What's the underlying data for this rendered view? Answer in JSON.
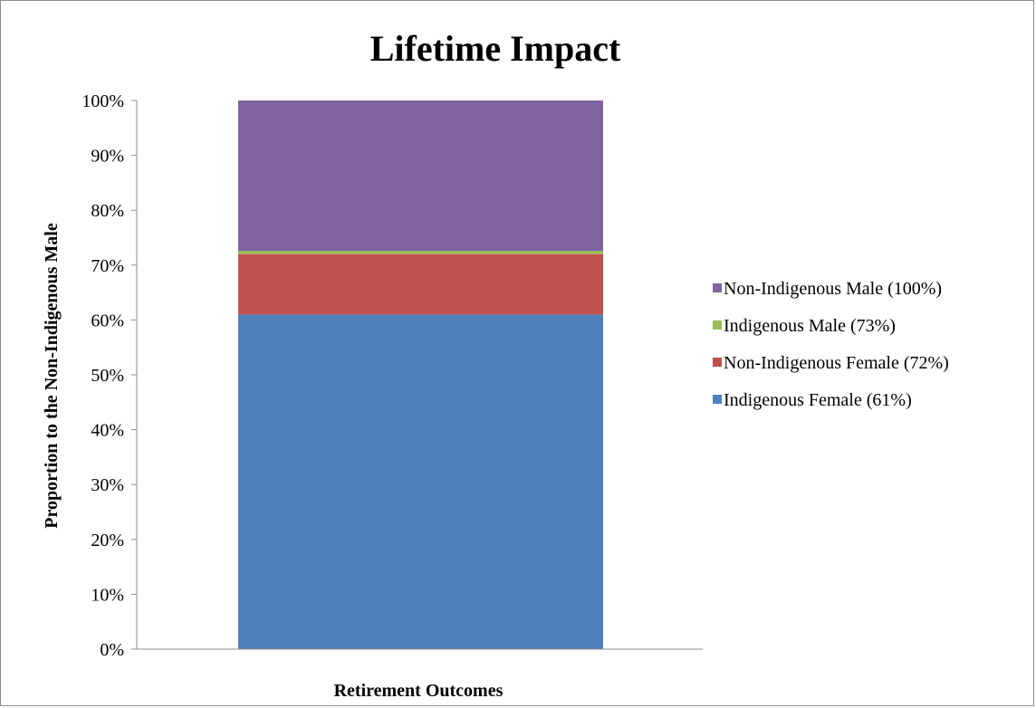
{
  "chart_data": {
    "type": "bar",
    "stacked": true,
    "title": "Lifetime Impact",
    "xlabel": "Retirement Outcomes",
    "ylabel": "Proportion to the Non-Indigenous Male",
    "ylim": [
      0,
      100
    ],
    "yticks": [
      "0%",
      "10%",
      "20%",
      "30%",
      "40%",
      "50%",
      "60%",
      "70%",
      "80%",
      "90%",
      "100%"
    ],
    "categories": [
      ""
    ],
    "series": [
      {
        "name": "Indigenous Female (61%)",
        "values": [
          61
        ],
        "color": "#4f81bd"
      },
      {
        "name": "Non-Indigenous Female (72%)",
        "values": [
          11
        ],
        "color": "#c0504d"
      },
      {
        "name": "Indigenous Male (73%)",
        "values": [
          0.6
        ],
        "color": "#9bbb59"
      },
      {
        "name": "Non-Indigenous Male (100%)",
        "values": [
          27.4
        ],
        "color": "#8064a2"
      }
    ],
    "legend_order": [
      "Non-Indigenous Male (100%)",
      "Indigenous Male (73%)",
      "Non-Indigenous Female (72%)",
      "Indigenous Female (61%)"
    ],
    "legend_position": "right",
    "grid": false
  }
}
